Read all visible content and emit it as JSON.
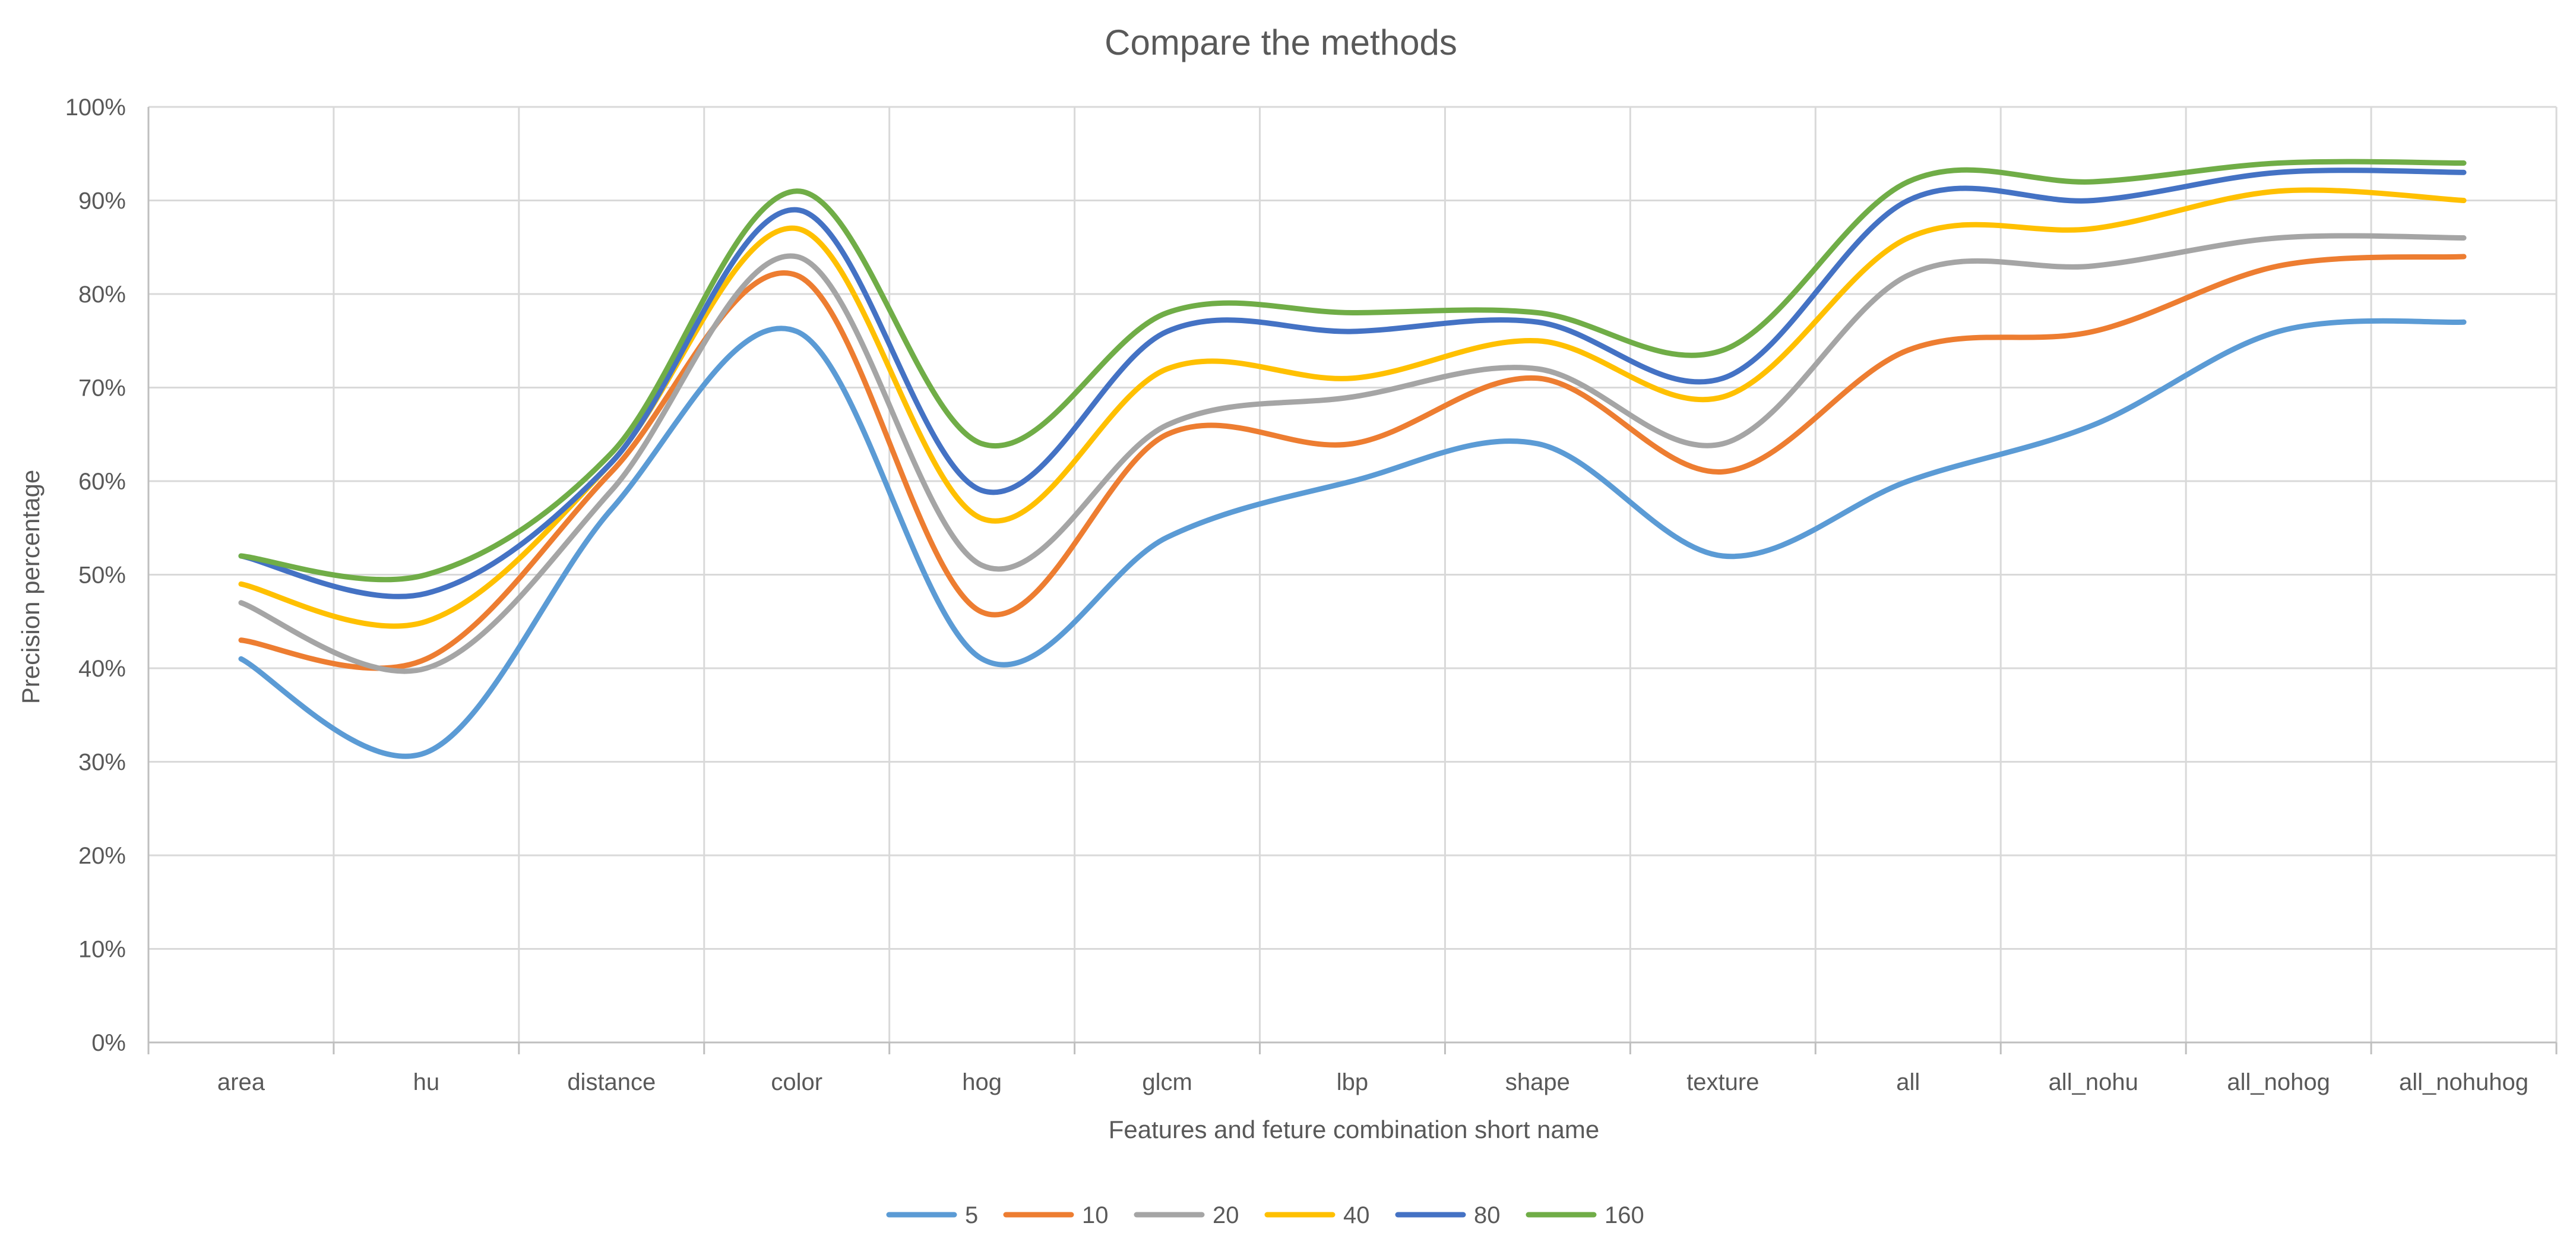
{
  "chart_data": {
    "type": "line",
    "smooth": true,
    "title": "Compare the methods",
    "xlabel": "Features and feture combination short name",
    "ylabel": "Precision percentage",
    "ylim": [
      0,
      100
    ],
    "yticks": [
      0,
      10,
      20,
      30,
      40,
      50,
      60,
      70,
      80,
      90,
      100
    ],
    "ytick_labels": [
      "0%",
      "10%",
      "20%",
      "30%",
      "40%",
      "50%",
      "60%",
      "70%",
      "80%",
      "90%",
      "100%"
    ],
    "grid": true,
    "legend_position": "bottom",
    "categories": [
      "area",
      "hu",
      "distance",
      "color",
      "hog",
      "glcm",
      "lbp",
      "shape",
      "texture",
      "all",
      "all_nohu",
      "all_nohog",
      "all_nohuhog"
    ],
    "series": [
      {
        "name": "5",
        "color": "#5B9BD5",
        "values": [
          41,
          31,
          57,
          76,
          41,
          54,
          60,
          64,
          52,
          60,
          66,
          76,
          77
        ]
      },
      {
        "name": "10",
        "color": "#ED7D31",
        "values": [
          43,
          41,
          61,
          82,
          46,
          65,
          64,
          71,
          61,
          74,
          76,
          83,
          84
        ]
      },
      {
        "name": "20",
        "color": "#A5A5A5",
        "values": [
          47,
          40,
          59,
          84,
          51,
          66,
          69,
          72,
          64,
          82,
          83,
          86,
          86
        ]
      },
      {
        "name": "40",
        "color": "#FFC000",
        "values": [
          49,
          45,
          62,
          87,
          56,
          72,
          71,
          75,
          69,
          86,
          87,
          91,
          90
        ]
      },
      {
        "name": "80",
        "color": "#4472C4",
        "values": [
          52,
          48,
          62,
          89,
          59,
          76,
          76,
          77,
          71,
          90,
          90,
          93,
          93
        ]
      },
      {
        "name": "160",
        "color": "#70AD47",
        "values": [
          52,
          50,
          63,
          91,
          64,
          78,
          78,
          78,
          74,
          92,
          92,
          94,
          94
        ]
      }
    ]
  }
}
